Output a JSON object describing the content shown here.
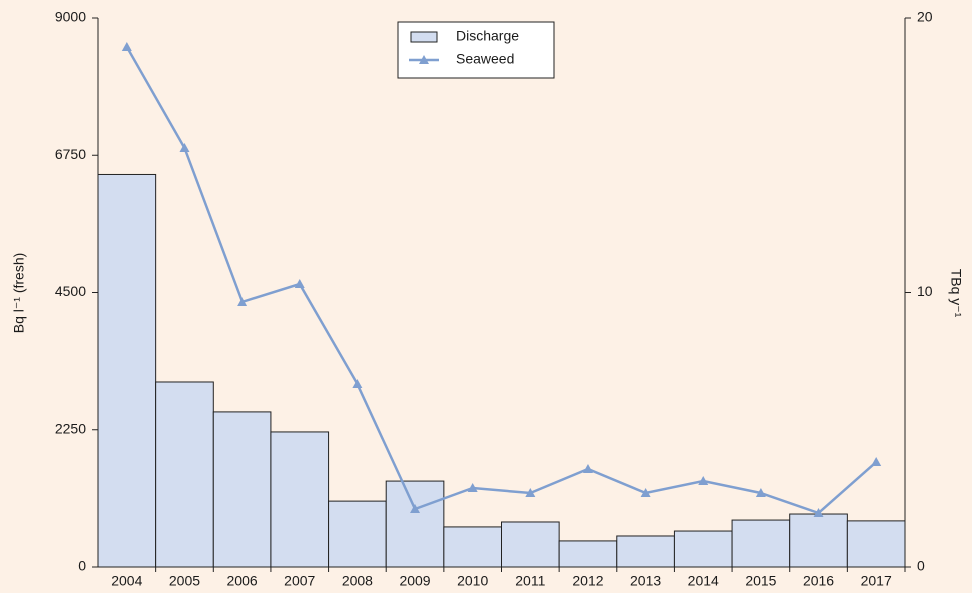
{
  "chart_data": {
    "type": "bar",
    "categories": [
      "2004",
      "2005",
      "2006",
      "2007",
      "2008",
      "2009",
      "2010",
      "2011",
      "2012",
      "2013",
      "2014",
      "2015",
      "2016",
      "2017"
    ],
    "series": [
      {
        "name": "Discharge",
        "type": "bar",
        "axis": "y2",
        "color": "#d3ddf0",
        "values": [
          14.3,
          6.74,
          5.65,
          4.92,
          2.4,
          3.13,
          1.46,
          1.64,
          0.95,
          1.13,
          1.31,
          1.71,
          1.93,
          1.68
        ]
      },
      {
        "name": "Seaweed",
        "type": "line",
        "color": "#7f9fd0",
        "values": [
          8525,
          6869,
          4344,
          4639,
          3000,
          951,
          1295,
          1213,
          1607,
          1213,
          1410,
          1213,
          885,
          1721
        ]
      }
    ],
    "ylabel": "Bq l⁻¹ (fresh)",
    "y2label": "TBq y⁻¹",
    "ylim": [
      0,
      9000
    ],
    "yticks": [
      0,
      2250,
      4500,
      6750,
      9000
    ],
    "y2lim": [
      0,
      20
    ],
    "y2ticks": [
      0,
      10,
      20
    ],
    "legend": "top"
  }
}
